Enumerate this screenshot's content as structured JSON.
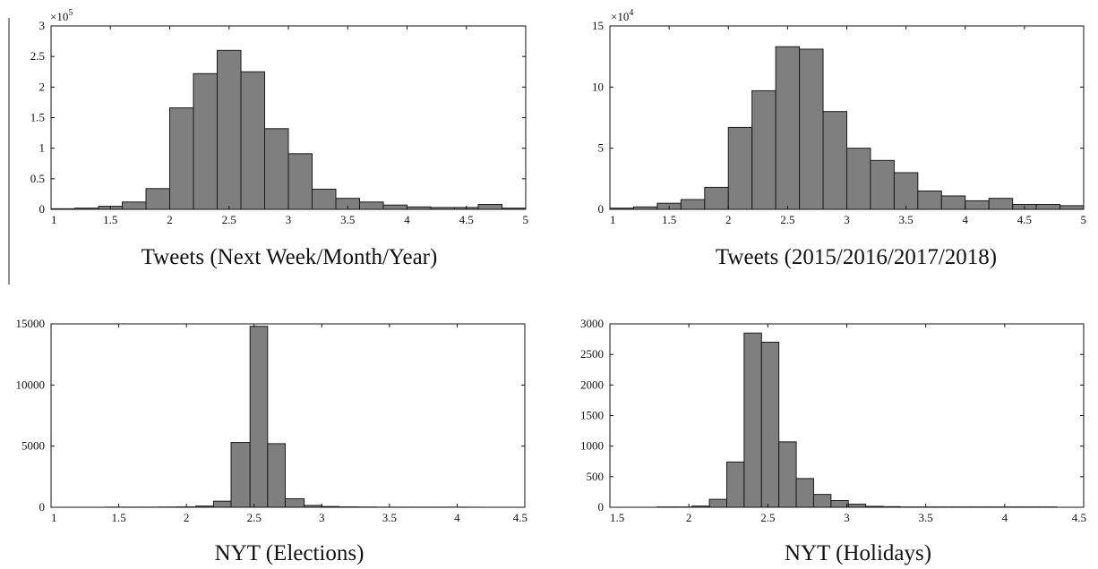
{
  "chart_data": [
    {
      "type": "bar",
      "xlabel": "Tweets (Next Week/Month/Year)",
      "xlim": [
        1,
        5
      ],
      "ylim": [
        0,
        3
      ],
      "y_multiplier": "×10",
      "y_exponent": "5",
      "xticks": [
        1,
        1.5,
        2,
        2.5,
        3,
        3.5,
        4,
        4.5,
        5
      ],
      "yticks": [
        0,
        0.5,
        1,
        1.5,
        2,
        2.5,
        3
      ],
      "bin_edges": [
        1,
        1.2,
        1.4,
        1.6,
        1.8,
        2,
        2.2,
        2.4,
        2.6,
        2.8,
        3,
        3.2,
        3.4,
        3.6,
        3.8,
        4,
        4.2,
        4.4,
        4.6,
        4.8,
        5
      ],
      "values": [
        0.01,
        0.02,
        0.05,
        0.12,
        0.34,
        1.66,
        2.22,
        2.6,
        2.25,
        1.32,
        0.91,
        0.33,
        0.18,
        0.12,
        0.07,
        0.04,
        0.03,
        0.03,
        0.08,
        0.02
      ],
      "grid": false
    },
    {
      "type": "bar",
      "xlabel": "Tweets (2015/2016/2017/2018)",
      "xlim": [
        1,
        5
      ],
      "ylim": [
        0,
        15
      ],
      "y_multiplier": "×10",
      "y_exponent": "4",
      "xticks": [
        1,
        1.5,
        2,
        2.5,
        3,
        3.5,
        4,
        4.5,
        5
      ],
      "yticks": [
        0,
        5,
        10,
        15
      ],
      "bin_edges": [
        1,
        1.2,
        1.4,
        1.6,
        1.8,
        2,
        2.2,
        2.4,
        2.6,
        2.8,
        3,
        3.2,
        3.4,
        3.6,
        3.8,
        4,
        4.2,
        4.4,
        4.6,
        4.8,
        5
      ],
      "values": [
        0.1,
        0.2,
        0.5,
        0.8,
        1.8,
        6.7,
        9.7,
        13.3,
        13.1,
        8.0,
        5.0,
        4.0,
        3.0,
        1.5,
        1.1,
        0.7,
        0.9,
        0.4,
        0.4,
        0.3
      ],
      "grid": false
    },
    {
      "type": "bar",
      "xlabel": "NYT (Elections)",
      "xlim": [
        1,
        4.5
      ],
      "ylim": [
        0,
        15000
      ],
      "xticks": [
        1,
        1.5,
        2,
        2.5,
        3,
        3.5,
        4,
        4.5
      ],
      "yticks": [
        0,
        5000,
        10000,
        15000
      ],
      "bin_edges": [
        1.4,
        1.53,
        1.67,
        1.8,
        1.93,
        2.07,
        2.2,
        2.33,
        2.47,
        2.6,
        2.73,
        2.87,
        3.0,
        3.13,
        3.27,
        3.4,
        3.53,
        3.67,
        3.8,
        3.93,
        4.07,
        4.2
      ],
      "values": [
        10,
        10,
        10,
        20,
        30,
        100,
        500,
        5300,
        14800,
        5200,
        700,
        150,
        60,
        30,
        20,
        10,
        10,
        10,
        10,
        10,
        5
      ],
      "grid": false
    },
    {
      "type": "bar",
      "xlabel": "NYT (Holidays)",
      "xlim": [
        1.5,
        4.5
      ],
      "ylim": [
        0,
        3000
      ],
      "xticks": [
        1.5,
        2,
        2.5,
        3,
        3.5,
        4,
        4.5
      ],
      "yticks": [
        0,
        500,
        1000,
        1500,
        2000,
        2500,
        3000
      ],
      "bin_edges": [
        1.8,
        1.91,
        2.02,
        2.13,
        2.24,
        2.35,
        2.46,
        2.57,
        2.68,
        2.79,
        2.9,
        3.01,
        3.12,
        3.23,
        3.34,
        3.45,
        3.56,
        3.67,
        3.78,
        3.89,
        4.0,
        4.11,
        4.22,
        4.33
      ],
      "values": [
        5,
        5,
        20,
        130,
        740,
        2850,
        2700,
        1070,
        470,
        210,
        110,
        50,
        15,
        10,
        5,
        5,
        5,
        5,
        5,
        5,
        5,
        5,
        5
      ],
      "grid": false
    }
  ]
}
